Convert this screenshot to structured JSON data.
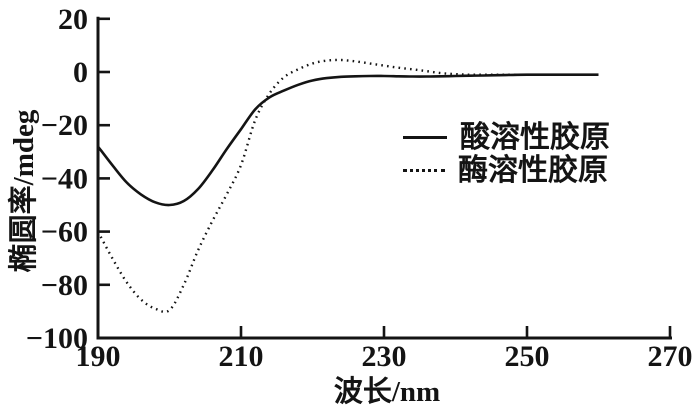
{
  "figure": {
    "background": "#ffffff",
    "ink_color": "#141414"
  },
  "chart_data": {
    "type": "line",
    "title": "",
    "xlabel": "波长/nm",
    "ylabel": "椭圆率/mdeg",
    "xlim": [
      190,
      270
    ],
    "ylim": [
      -100,
      20
    ],
    "xticks": [
      190,
      210,
      230,
      250,
      270
    ],
    "yticks": [
      20,
      0,
      -20,
      -40,
      -60,
      -80,
      -100
    ],
    "grid": false,
    "legend_position": "middle-right",
    "x": [
      190,
      192,
      194,
      196,
      198,
      200,
      202,
      204,
      206,
      208,
      210,
      212,
      214,
      216,
      218,
      220,
      222,
      224,
      226,
      228,
      230,
      232,
      234,
      236,
      238,
      240,
      242,
      244,
      246,
      248,
      250,
      252,
      254,
      256,
      258,
      260
    ],
    "series": [
      {
        "name": "酸溶性胶原",
        "key": "acid-soluble-collagen",
        "style": "solid",
        "values": [
          -28,
          -35,
          -41.5,
          -46,
          -49,
          -50,
          -48.5,
          -44,
          -37,
          -29,
          -21.5,
          -14,
          -9.5,
          -7,
          -4.8,
          -3.2,
          -2.3,
          -1.8,
          -1.6,
          -1.5,
          -1.5,
          -1.6,
          -1.7,
          -1.7,
          -1.6,
          -1.5,
          -1.4,
          -1.3,
          -1.2,
          -1.1,
          -1,
          -1,
          -1,
          -1,
          -1,
          -1
        ]
      },
      {
        "name": "酶溶性胶原",
        "key": "enzyme-soluble-collagen",
        "style": "dotted",
        "values": [
          -60,
          -70,
          -79,
          -85.5,
          -89,
          -89.5,
          -80,
          -67,
          -56,
          -46,
          -35,
          -18,
          -8,
          -2,
          1,
          3.2,
          4.3,
          4.5,
          4,
          3.2,
          2.4,
          1.6,
          1,
          0.3,
          -0.4,
          -0.8,
          -1,
          -1,
          -1,
          -1,
          -1,
          -1,
          -1,
          -1,
          -1,
          -1
        ]
      }
    ]
  }
}
